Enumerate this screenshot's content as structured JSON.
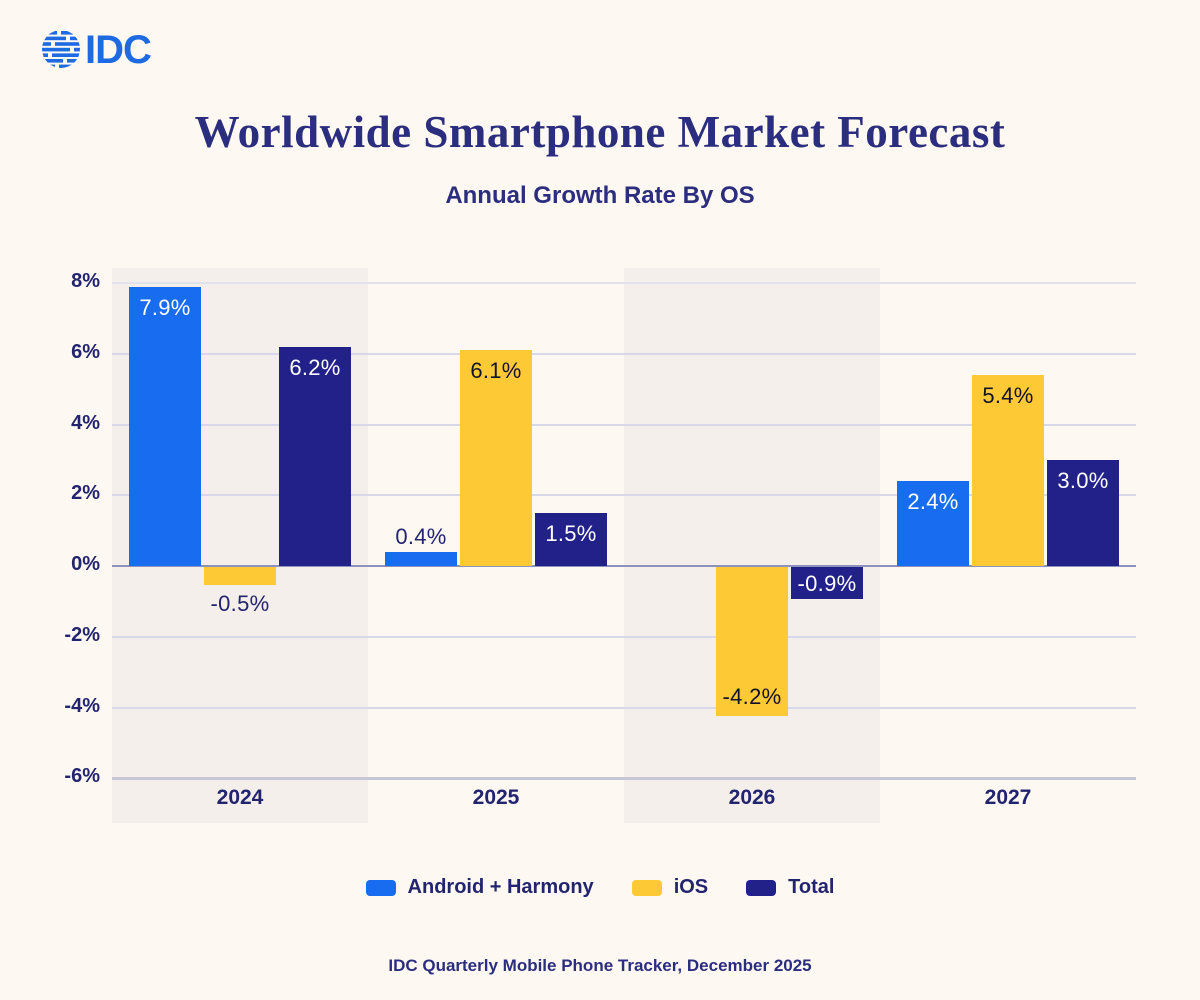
{
  "logo": {
    "text": "IDC",
    "color": "#1e6ae3",
    "icon": "idc-globe-icon"
  },
  "header": {
    "title": "Worldwide Smartphone Market Forecast",
    "subtitle": "Annual Growth Rate By OS"
  },
  "footer": {
    "source": "IDC Quarterly Mobile Phone Tracker, December 2025"
  },
  "legend": {
    "position": "bottom",
    "items": [
      {
        "label": "Android + Harmony",
        "color": "#176cf0"
      },
      {
        "label": "iOS",
        "color": "#fdc935"
      },
      {
        "label": "Total",
        "color": "#22218a"
      }
    ]
  },
  "colors": {
    "page_background": "#fdf8f2",
    "band_background": "#f4efeb",
    "gridline": "#d8d8e8",
    "zero_line": "#8f92bd",
    "text_navy": "#23246f",
    "android_blue": "#176cf0",
    "ios_yellow": "#fdc935",
    "total_navy": "#22218a"
  },
  "chart_data": {
    "type": "bar",
    "title": "Worldwide Smartphone Market Forecast",
    "subtitle": "Annual Growth Rate By OS",
    "xlabel": "",
    "ylabel": "",
    "categories": [
      "2024",
      "2025",
      "2026",
      "2027"
    ],
    "series": [
      {
        "name": "Android + Harmony",
        "color": "#176cf0",
        "values": [
          7.9,
          0.4,
          0.0,
          2.4
        ],
        "labels": [
          "7.9%",
          "0.4%",
          "",
          "2.4%"
        ],
        "label_pos": [
          "top-in",
          "top-out",
          "none",
          "top-in"
        ],
        "label_color": [
          "#ffffff",
          "#23246f",
          "",
          "#ffffff"
        ]
      },
      {
        "name": "iOS",
        "color": "#fdc935",
        "values": [
          -0.5,
          6.1,
          -4.2,
          5.4
        ],
        "labels": [
          "-0.5%",
          "6.1%",
          "-4.2%",
          "5.4%"
        ],
        "label_pos": [
          "bottom-out",
          "top-in",
          "bottom-in",
          "top-in"
        ],
        "label_color": [
          "#23246f",
          "#12122b",
          "#12122b",
          "#12122b"
        ]
      },
      {
        "name": "Total",
        "color": "#22218a",
        "values": [
          6.2,
          1.5,
          -0.9,
          3.0
        ],
        "labels": [
          "6.2%",
          "1.5%",
          "-0.9%",
          "3.0%"
        ],
        "label_pos": [
          "top-in",
          "top-in",
          "center",
          "top-in"
        ],
        "label_color": [
          "#ffffff",
          "#ffffff",
          "#ffffff",
          "#ffffff"
        ]
      }
    ],
    "ylim": [
      -6,
      8
    ],
    "yticks": [
      "8%",
      "6%",
      "4%",
      "2%",
      "0%",
      "-2%",
      "-4%",
      "-6%"
    ],
    "ytick_values": [
      8,
      6,
      4,
      2,
      0,
      -2,
      -4,
      -6
    ],
    "grid": true,
    "shaded_categories": [
      "2024",
      "2026"
    ],
    "legend_position": "bottom"
  }
}
